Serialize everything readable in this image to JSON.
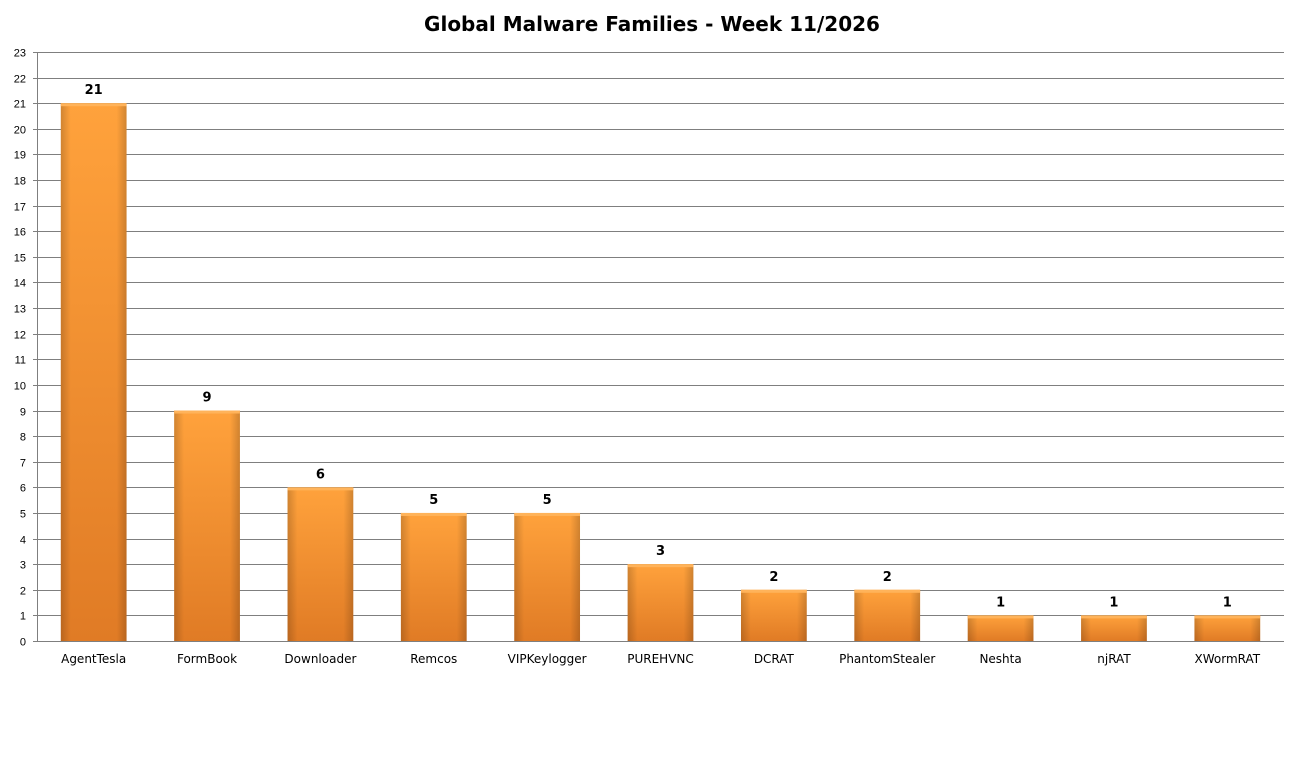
{
  "chart_data": {
    "type": "bar",
    "title": "Global Malware Families - Week 11/2026",
    "xlabel": "",
    "ylabel": "",
    "categories": [
      "AgentTesla",
      "FormBook",
      "Downloader",
      "Remcos",
      "VIPKeylogger",
      "PUREHVNC",
      "DCRAT",
      "PhantomStealer",
      "Neshta",
      "njRAT",
      "XWormRAT"
    ],
    "values": [
      21,
      9,
      6,
      5,
      5,
      3,
      2,
      2,
      1,
      1,
      1
    ],
    "ylim": [
      0,
      23
    ],
    "yticks": [
      0,
      1,
      2,
      3,
      4,
      5,
      6,
      7,
      8,
      9,
      10,
      11,
      12,
      13,
      14,
      15,
      16,
      17,
      18,
      19,
      20,
      21,
      22,
      23
    ],
    "grid": true,
    "legend": "none",
    "data_labels": true,
    "colors": {
      "bar_light": "#ffa23c",
      "bar_dark": "#e07b25",
      "bar_top": "#ffb35a",
      "gridline": "#7f7f7f",
      "axis": "#7f7f7f"
    }
  }
}
